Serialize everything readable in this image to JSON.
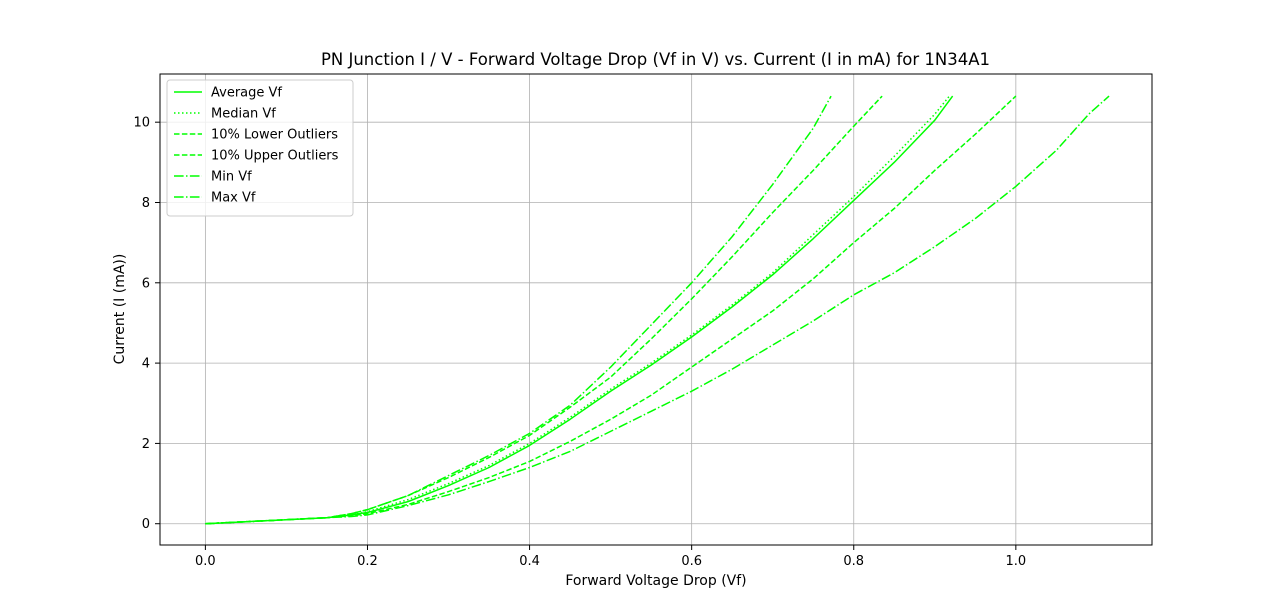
{
  "chart_data": {
    "type": "line",
    "title": "PN Junction I / V - Forward Voltage Drop (Vf in V) vs. Current (I in mA) for 1N34A1",
    "xlabel": "Forward Voltage Drop (Vf)",
    "ylabel": "Current (I (mA))",
    "xlim": [
      -0.056,
      1.168
    ],
    "ylim": [
      -0.53,
      11.2
    ],
    "xticks": [
      0.0,
      0.2,
      0.4,
      0.6,
      0.8,
      1.0
    ],
    "xtick_labels": [
      "0.0",
      "0.2",
      "0.4",
      "0.6",
      "0.8",
      "1.0"
    ],
    "yticks": [
      0,
      2,
      4,
      6,
      8,
      10
    ],
    "ytick_labels": [
      "0",
      "2",
      "4",
      "6",
      "8",
      "10"
    ],
    "grid": true,
    "legend_position": "top-left",
    "line_color": "#00ff00",
    "series": [
      {
        "name": "Average Vf",
        "style": "solid",
        "x": [
          0.0,
          0.05,
          0.1,
          0.15,
          0.18,
          0.2,
          0.25,
          0.3,
          0.35,
          0.4,
          0.45,
          0.5,
          0.55,
          0.6,
          0.65,
          0.7,
          0.75,
          0.8,
          0.85,
          0.9,
          0.922
        ],
        "y": [
          0.0,
          0.05,
          0.1,
          0.15,
          0.22,
          0.28,
          0.55,
          0.95,
          1.4,
          1.95,
          2.6,
          3.3,
          3.95,
          4.65,
          5.4,
          6.2,
          7.1,
          8.05,
          9.0,
          10.05,
          10.65
        ]
      },
      {
        "name": "Median Vf",
        "style": "dotted",
        "x": [
          0.0,
          0.05,
          0.1,
          0.15,
          0.18,
          0.2,
          0.25,
          0.3,
          0.35,
          0.4,
          0.45,
          0.5,
          0.55,
          0.6,
          0.65,
          0.7,
          0.75,
          0.8,
          0.85,
          0.9,
          0.918
        ],
        "y": [
          0.0,
          0.05,
          0.1,
          0.15,
          0.22,
          0.3,
          0.6,
          1.0,
          1.45,
          2.0,
          2.65,
          3.35,
          4.0,
          4.7,
          5.45,
          6.25,
          7.2,
          8.15,
          9.15,
          10.2,
          10.65
        ]
      },
      {
        "name": "10% Lower Outliers",
        "style": "dashed",
        "x": [
          0.0,
          0.05,
          0.1,
          0.15,
          0.18,
          0.2,
          0.25,
          0.3,
          0.35,
          0.4,
          0.45,
          0.5,
          0.55,
          0.6,
          0.65,
          0.7,
          0.75,
          0.8,
          0.85,
          0.9,
          0.95,
          1.0
        ],
        "y": [
          0.0,
          0.05,
          0.1,
          0.15,
          0.2,
          0.25,
          0.48,
          0.8,
          1.15,
          1.55,
          2.05,
          2.6,
          3.2,
          3.9,
          4.6,
          5.3,
          6.1,
          7.0,
          7.85,
          8.8,
          9.7,
          10.65
        ]
      },
      {
        "name": "10% Upper Outliers",
        "style": "dashed",
        "x": [
          0.0,
          0.05,
          0.1,
          0.15,
          0.18,
          0.2,
          0.25,
          0.3,
          0.35,
          0.4,
          0.45,
          0.5,
          0.55,
          0.6,
          0.65,
          0.7,
          0.75,
          0.8,
          0.835
        ],
        "y": [
          0.0,
          0.05,
          0.1,
          0.15,
          0.25,
          0.35,
          0.7,
          1.15,
          1.65,
          2.2,
          2.9,
          3.65,
          4.6,
          5.6,
          6.65,
          7.75,
          8.8,
          9.9,
          10.65
        ]
      },
      {
        "name": "Min Vf",
        "style": "dashdot",
        "x": [
          0.0,
          0.05,
          0.1,
          0.15,
          0.18,
          0.2,
          0.25,
          0.3,
          0.35,
          0.4,
          0.45,
          0.5,
          0.55,
          0.6,
          0.65,
          0.7,
          0.75,
          0.8,
          0.85,
          0.9,
          0.95,
          1.0,
          1.05,
          1.09,
          1.115
        ],
        "y": [
          0.0,
          0.05,
          0.1,
          0.15,
          0.18,
          0.22,
          0.45,
          0.72,
          1.05,
          1.4,
          1.8,
          2.3,
          2.8,
          3.3,
          3.85,
          4.45,
          5.05,
          5.7,
          6.25,
          6.9,
          7.6,
          8.4,
          9.3,
          10.2,
          10.65
        ]
      },
      {
        "name": "Max Vf",
        "style": "dashdot",
        "x": [
          0.0,
          0.05,
          0.1,
          0.15,
          0.18,
          0.2,
          0.25,
          0.3,
          0.35,
          0.4,
          0.45,
          0.5,
          0.55,
          0.6,
          0.65,
          0.7,
          0.75,
          0.772
        ],
        "y": [
          0.0,
          0.05,
          0.1,
          0.15,
          0.25,
          0.35,
          0.7,
          1.2,
          1.7,
          2.25,
          2.95,
          3.9,
          4.95,
          6.0,
          7.15,
          8.45,
          9.85,
          10.65
        ]
      }
    ]
  }
}
